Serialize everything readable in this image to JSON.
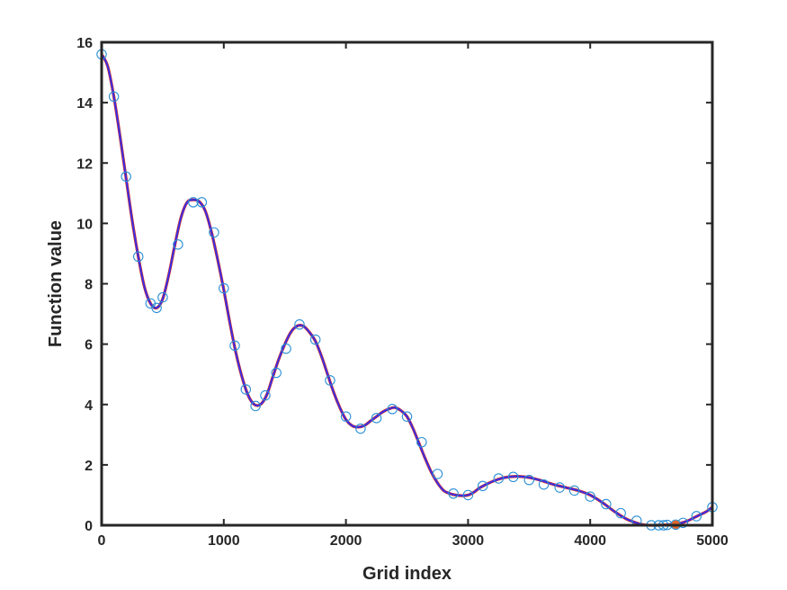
{
  "chart_data": {
    "type": "line",
    "title": "",
    "xlabel": "Grid index",
    "ylabel": "Function value",
    "xlim": [
      0,
      5000
    ],
    "ylim": [
      0,
      16
    ],
    "x_ticks": [
      0,
      1000,
      2000,
      3000,
      4000,
      5000
    ],
    "y_ticks": [
      0,
      2,
      4,
      6,
      8,
      10,
      12,
      14,
      16
    ],
    "grid": false,
    "legend": "none",
    "colors": {
      "curve_outer": "#d62a1e",
      "curve_inner": "#3a2ee6",
      "markers": "#2a8fd6",
      "highlight": "#e0662a",
      "axes": "#262626",
      "background": "#ffffff"
    },
    "series": [
      {
        "kind": "curve",
        "x": [
          0,
          50,
          100,
          150,
          200,
          250,
          300,
          350,
          400,
          450,
          500,
          550,
          600,
          650,
          700,
          750,
          800,
          850,
          900,
          950,
          1000,
          1050,
          1100,
          1150,
          1200,
          1250,
          1300,
          1350,
          1400,
          1450,
          1500,
          1550,
          1600,
          1650,
          1700,
          1750,
          1800,
          1850,
          1900,
          1950,
          2000,
          2050,
          2100,
          2150,
          2200,
          2250,
          2300,
          2350,
          2400,
          2450,
          2500,
          2550,
          2600,
          2650,
          2700,
          2750,
          2800,
          2850,
          2900,
          2950,
          3000,
          3050,
          3100,
          3200,
          3300,
          3400,
          3500,
          3600,
          3700,
          3800,
          3900,
          4000,
          4100,
          4200,
          4300,
          4400,
          4450,
          4500,
          4550,
          4600,
          4650,
          4700,
          4750,
          4800,
          4850,
          4900,
          4950,
          5000
        ],
        "y": [
          15.6,
          15.2,
          14.2,
          12.9,
          11.5,
          10.1,
          8.9,
          7.9,
          7.35,
          7.2,
          7.5,
          8.3,
          9.3,
          10.2,
          10.7,
          10.78,
          10.72,
          10.4,
          9.7,
          8.8,
          7.8,
          6.7,
          5.7,
          4.9,
          4.3,
          4.0,
          4.0,
          4.3,
          4.9,
          5.5,
          6.0,
          6.4,
          6.6,
          6.6,
          6.4,
          6.1,
          5.6,
          5.0,
          4.4,
          3.9,
          3.5,
          3.3,
          3.25,
          3.3,
          3.45,
          3.6,
          3.75,
          3.85,
          3.9,
          3.8,
          3.6,
          3.2,
          2.7,
          2.2,
          1.75,
          1.4,
          1.15,
          1.05,
          1.0,
          0.98,
          1.0,
          1.1,
          1.25,
          1.45,
          1.58,
          1.62,
          1.58,
          1.48,
          1.35,
          1.25,
          1.15,
          1.0,
          0.75,
          0.45,
          0.2,
          0.05,
          0.01,
          0.0,
          0.0,
          0.01,
          0.02,
          0.05,
          0.08,
          0.15,
          0.25,
          0.35,
          0.45,
          0.6
        ]
      },
      {
        "kind": "markers",
        "x": [
          0,
          100,
          200,
          300,
          400,
          450,
          500,
          625,
          750,
          820,
          920,
          1000,
          1090,
          1180,
          1260,
          1340,
          1430,
          1510,
          1620,
          1750,
          1870,
          2000,
          2120,
          2250,
          2380,
          2500,
          2620,
          2750,
          2880,
          3000,
          3120,
          3250,
          3370,
          3500,
          3620,
          3750,
          3870,
          4000,
          4130,
          4250,
          4380,
          4500,
          4560,
          4600,
          4630,
          4700,
          4760,
          4870,
          5000
        ],
        "y": [
          15.6,
          14.2,
          11.55,
          8.9,
          7.35,
          7.2,
          7.55,
          9.3,
          10.7,
          10.7,
          9.7,
          7.85,
          5.95,
          4.5,
          3.95,
          4.3,
          5.05,
          5.85,
          6.65,
          6.15,
          4.8,
          3.6,
          3.2,
          3.55,
          3.85,
          3.6,
          2.75,
          1.7,
          1.05,
          1.0,
          1.3,
          1.55,
          1.6,
          1.5,
          1.35,
          1.25,
          1.15,
          0.95,
          0.7,
          0.4,
          0.15,
          0.0,
          0.0,
          0.0,
          0.01,
          0.02,
          0.08,
          0.3,
          0.6
        ]
      },
      {
        "kind": "highlight",
        "x": [
          4700
        ],
        "y": [
          0.02
        ]
      }
    ]
  }
}
